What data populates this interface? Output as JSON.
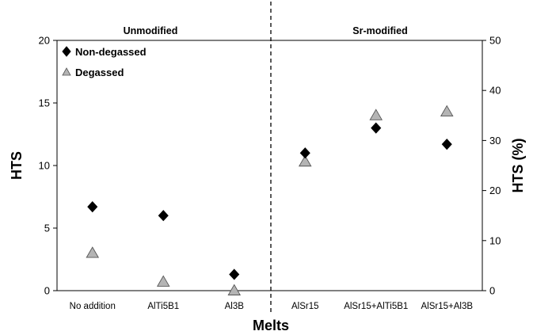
{
  "chart_data": {
    "type": "scatter",
    "xlabel": "Melts",
    "ylabel": "HTS",
    "y2label": "HTS (%)",
    "categories": [
      "No addition",
      "AlTi5B1",
      "Al3B",
      "AlSr15",
      "AlSr15+AlTi5B1",
      "AlSr15+Al3B"
    ],
    "ylim": [
      0,
      20
    ],
    "yticks": [
      0,
      5,
      10,
      15,
      20
    ],
    "y2lim": [
      0,
      50
    ],
    "y2ticks": [
      0,
      10,
      20,
      30,
      40,
      50
    ],
    "regions": [
      "Unmodified",
      "Sr-modified"
    ],
    "legend_position": "top-left",
    "grid": false,
    "series": [
      {
        "name": "Non-degassed",
        "marker": "diamond",
        "color": "#000000",
        "values": [
          6.7,
          6.0,
          1.3,
          11.0,
          13.0,
          11.7
        ]
      },
      {
        "name": "Degassed",
        "marker": "triangle",
        "color": "#b4b4b4",
        "values": [
          3.0,
          0.7,
          0.0,
          10.3,
          14.0,
          14.3
        ]
      }
    ]
  }
}
